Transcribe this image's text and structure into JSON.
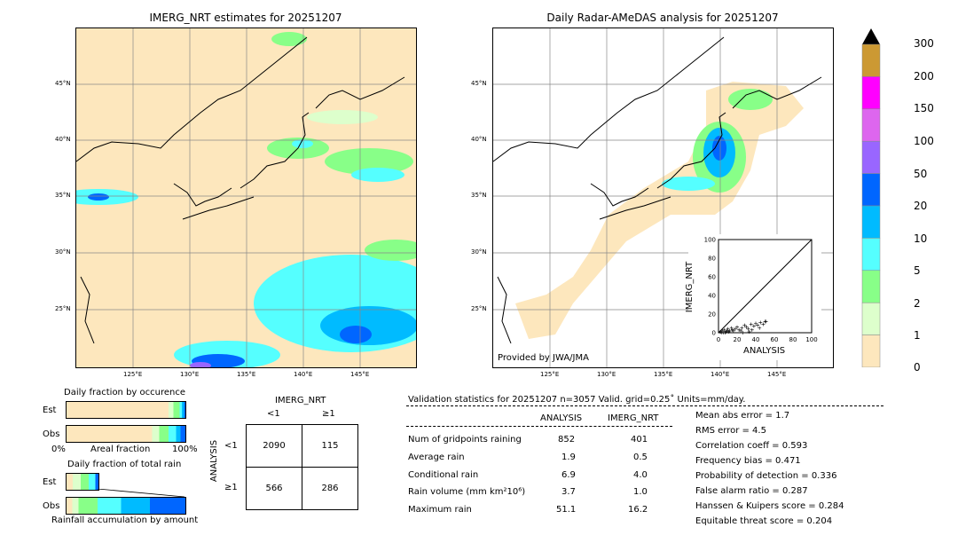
{
  "left_map": {
    "title": "IMERG_NRT estimates for 20251207",
    "lat_labels": [
      "45°N",
      "40°N",
      "35°N",
      "30°N",
      "25°N"
    ],
    "lon_labels": [
      "125°E",
      "130°E",
      "135°E",
      "140°E",
      "145°E"
    ]
  },
  "right_map": {
    "title": "Daily Radar-AMeDAS analysis for 20251207",
    "lat_labels": [
      "45°N",
      "40°N",
      "35°N",
      "30°N",
      "25°N"
    ],
    "lon_labels": [
      "125°E",
      "130°E",
      "135°E",
      "140°E",
      "145°E"
    ],
    "credit": "Provided by JWA/JMA"
  },
  "colorbar": {
    "labels": [
      "300",
      "200",
      "150",
      "100",
      "50",
      "20",
      "10",
      "5",
      "2",
      "1",
      "0"
    ],
    "colors": [
      "#cc9933",
      "#ff00ff",
      "#dd66ee",
      "#9966ff",
      "#0066ff",
      "#00bbff",
      "#55ffff",
      "#88ff88",
      "#ddffcc",
      "#fde7bd"
    ]
  },
  "scatter": {
    "xlabel": "ANALYSIS",
    "ylabel": "IMERG_NRT",
    "ticks": [
      "0",
      "20",
      "40",
      "60",
      "80",
      "100"
    ]
  },
  "fraction_occurrence": {
    "title": "Daily fraction by occurence",
    "est_label": "Est",
    "obs_label": "Obs",
    "axis_left": "0%",
    "axis_mid": "Areal fraction",
    "axis_right": "100%"
  },
  "fraction_rain": {
    "title": "Daily fraction of total rain",
    "est_label": "Est",
    "obs_label": "Obs",
    "axis_caption": "Rainfall accumulation by amount"
  },
  "contingency": {
    "col_header": "IMERG_NRT",
    "col_lt": "<1",
    "col_ge": "≥1",
    "row_header": "ANALYSIS",
    "row_lt": "<1",
    "row_ge": "≥1",
    "c11": "2090",
    "c12": "115",
    "c21": "566",
    "c22": "286"
  },
  "validation": {
    "header": "Validation statistics for 20251207  n=3057 Valid. grid=0.25˚ Units=mm/day.",
    "col_analysis": "ANALYSIS",
    "col_imerg": "IMERG_NRT",
    "rows": [
      {
        "label": "Num of gridpoints raining",
        "a": "852",
        "b": "401"
      },
      {
        "label": "Average rain",
        "a": "1.9",
        "b": "0.5"
      },
      {
        "label": "Conditional rain",
        "a": "6.9",
        "b": "4.0"
      },
      {
        "label": "Rain volume (mm km²10⁶)",
        "a": "3.7",
        "b": "1.0"
      },
      {
        "label": "Maximum rain",
        "a": "51.1",
        "b": "16.2"
      }
    ],
    "scores": [
      "Mean abs error =    1.7",
      "RMS error =    4.5",
      "Correlation coeff =  0.593",
      "Frequency bias =  0.471",
      "Probability of detection =  0.336",
      "False alarm ratio =  0.287",
      "Hanssen & Kuipers score =  0.284",
      "Equitable threat score =  0.204"
    ]
  },
  "chart_data": {
    "type": "scatter",
    "xlabel": "ANALYSIS",
    "ylabel": "IMERG_NRT",
    "xlim": [
      0,
      100
    ],
    "ylim": [
      0,
      100
    ],
    "points": [
      [
        2,
        1
      ],
      [
        4,
        2
      ],
      [
        5,
        0
      ],
      [
        6,
        3
      ],
      [
        8,
        1
      ],
      [
        10,
        4
      ],
      [
        12,
        2
      ],
      [
        14,
        5
      ],
      [
        15,
        3
      ],
      [
        18,
        4
      ],
      [
        20,
        6
      ],
      [
        22,
        3
      ],
      [
        25,
        5
      ],
      [
        28,
        8
      ],
      [
        30,
        6
      ],
      [
        32,
        4
      ],
      [
        35,
        9
      ],
      [
        38,
        7
      ],
      [
        40,
        10
      ],
      [
        42,
        8
      ],
      [
        45,
        11
      ],
      [
        48,
        9
      ],
      [
        50,
        12
      ],
      [
        51,
        12
      ],
      [
        3,
        0
      ],
      [
        7,
        0
      ],
      [
        9,
        2
      ],
      [
        11,
        1
      ],
      [
        16,
        2
      ],
      [
        24,
        2
      ],
      [
        26,
        0
      ],
      [
        33,
        1
      ],
      [
        36,
        3
      ],
      [
        44,
        5
      ]
    ]
  }
}
